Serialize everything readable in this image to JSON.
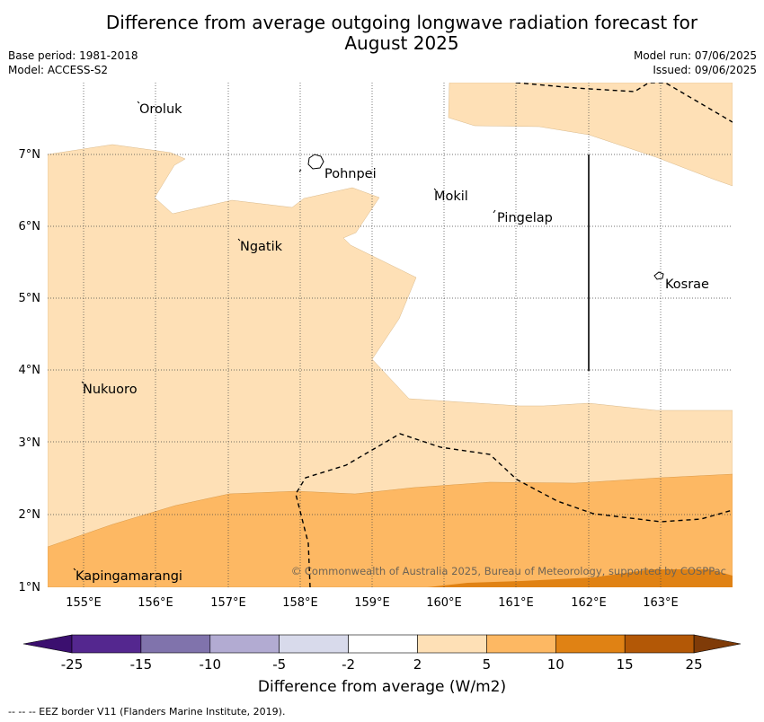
{
  "title_line1": "Difference from average outgoing longwave radiation forecast for",
  "title_line2": "August 2025",
  "base_period": "Base period: 1981-2018",
  "model": "Model: ACCESS-S2",
  "model_run": "Model run: 07/06/2025",
  "issued": "Issued: 09/06/2025",
  "lon_labels": [
    "155°E",
    "156°E",
    "157°E",
    "158°E",
    "159°E",
    "160°E",
    "161°E",
    "162°E",
    "163°E"
  ],
  "lat_labels": [
    "1°N",
    "2°N",
    "3°N",
    "4°N",
    "5°N",
    "6°N",
    "7°N"
  ],
  "places": [
    "Oroluk",
    "Pohnpei",
    "Mokil",
    "Pingelap",
    "Ngatik",
    "Kosrae",
    "Nukuoro",
    "Kapingamarangi"
  ],
  "copyright": "© Commonwealth of Australia 2025, Bureau of Meteorology, supported by COSPPac",
  "colorbar": {
    "ticks": [
      "-25",
      "-15",
      "-10",
      "-5",
      "-2",
      "2",
      "5",
      "10",
      "15",
      "25"
    ],
    "colors": [
      "#3b0f6f",
      "#54278f",
      "#8073ac",
      "#b2abd2",
      "#d8daeb",
      "#ffffff",
      "#fee0b6",
      "#fdb863",
      "#e08214",
      "#b35806",
      "#7f3b08"
    ],
    "label": "Difference from average (W/m2)"
  },
  "footnote": "--  --  -- EEZ border V11 (Flanders Marine Institute, 2019)."
}
